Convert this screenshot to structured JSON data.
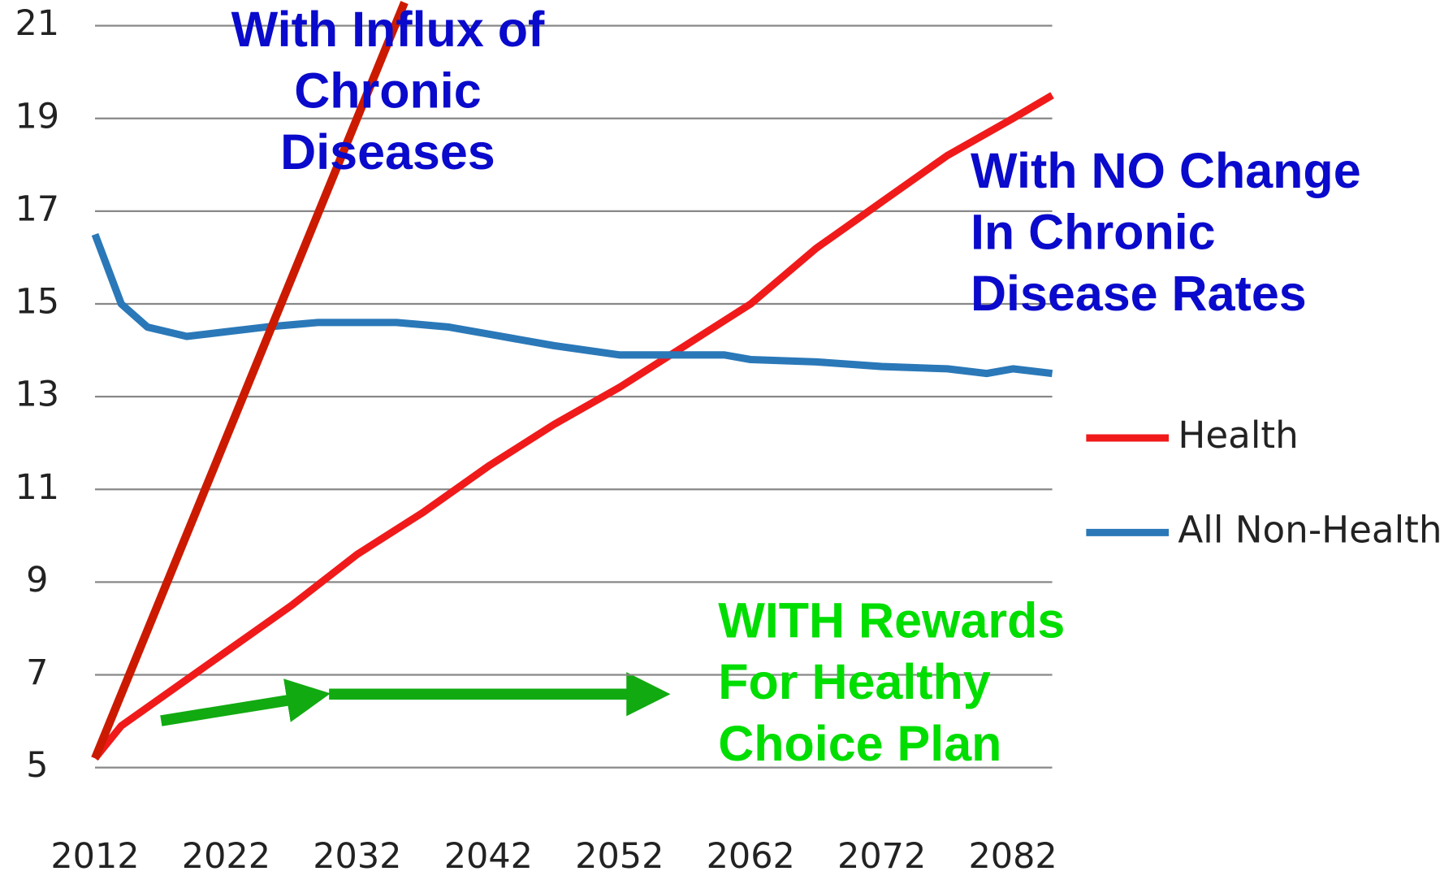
{
  "chart_data": {
    "type": "line",
    "xlim": [
      2012,
      2085
    ],
    "xticks": [
      2012,
      2022,
      2032,
      2042,
      2052,
      2062,
      2072,
      2082
    ],
    "ylim": [
      5,
      21
    ],
    "yticks": [
      5,
      7,
      9,
      11,
      13,
      15,
      17,
      19,
      21
    ],
    "grid": true,
    "series": [
      {
        "name": "Health",
        "color": "#f01a1a",
        "legend": true,
        "x": [
          2012,
          2014,
          2017,
          2022,
          2027,
          2032,
          2037,
          2042,
          2047,
          2052,
          2057,
          2062,
          2067,
          2072,
          2077,
          2082,
          2085
        ],
        "values": [
          5.2,
          5.9,
          6.5,
          7.5,
          8.5,
          9.6,
          10.5,
          11.5,
          12.4,
          13.2,
          14.1,
          15.0,
          16.2,
          17.2,
          18.2,
          19.0,
          19.5
        ]
      },
      {
        "name": "All Non-Health",
        "color": "#2a78b8",
        "legend": true,
        "x": [
          2012,
          2014,
          2016,
          2019,
          2022,
          2025,
          2029,
          2032,
          2035,
          2039,
          2043,
          2047,
          2052,
          2057,
          2060,
          2062,
          2067,
          2072,
          2077,
          2080,
          2082,
          2085
        ],
        "values": [
          16.5,
          15.0,
          14.5,
          14.3,
          14.4,
          14.5,
          14.6,
          14.6,
          14.6,
          14.5,
          14.3,
          14.1,
          13.9,
          13.9,
          13.9,
          13.8,
          13.75,
          13.65,
          13.6,
          13.5,
          13.6,
          13.5
        ]
      },
      {
        "color": "#cc1a00",
        "x": [
          2012,
          2035.6
        ],
        "values": [
          5.2,
          21.5
        ]
      }
    ],
    "annotations": [
      {
        "lines": [
          "With Influx of",
          "Chronic",
          "Diseases"
        ],
        "color": "#0a0acc"
      },
      {
        "lines": [
          "With NO Change",
          "In Chronic",
          "Disease Rates"
        ],
        "color": "#0a0acc"
      },
      {
        "lines": [
          "WITH  Rewards",
          "For Healthy",
          "Choice Plan"
        ],
        "color": "#00dd00"
      }
    ]
  }
}
